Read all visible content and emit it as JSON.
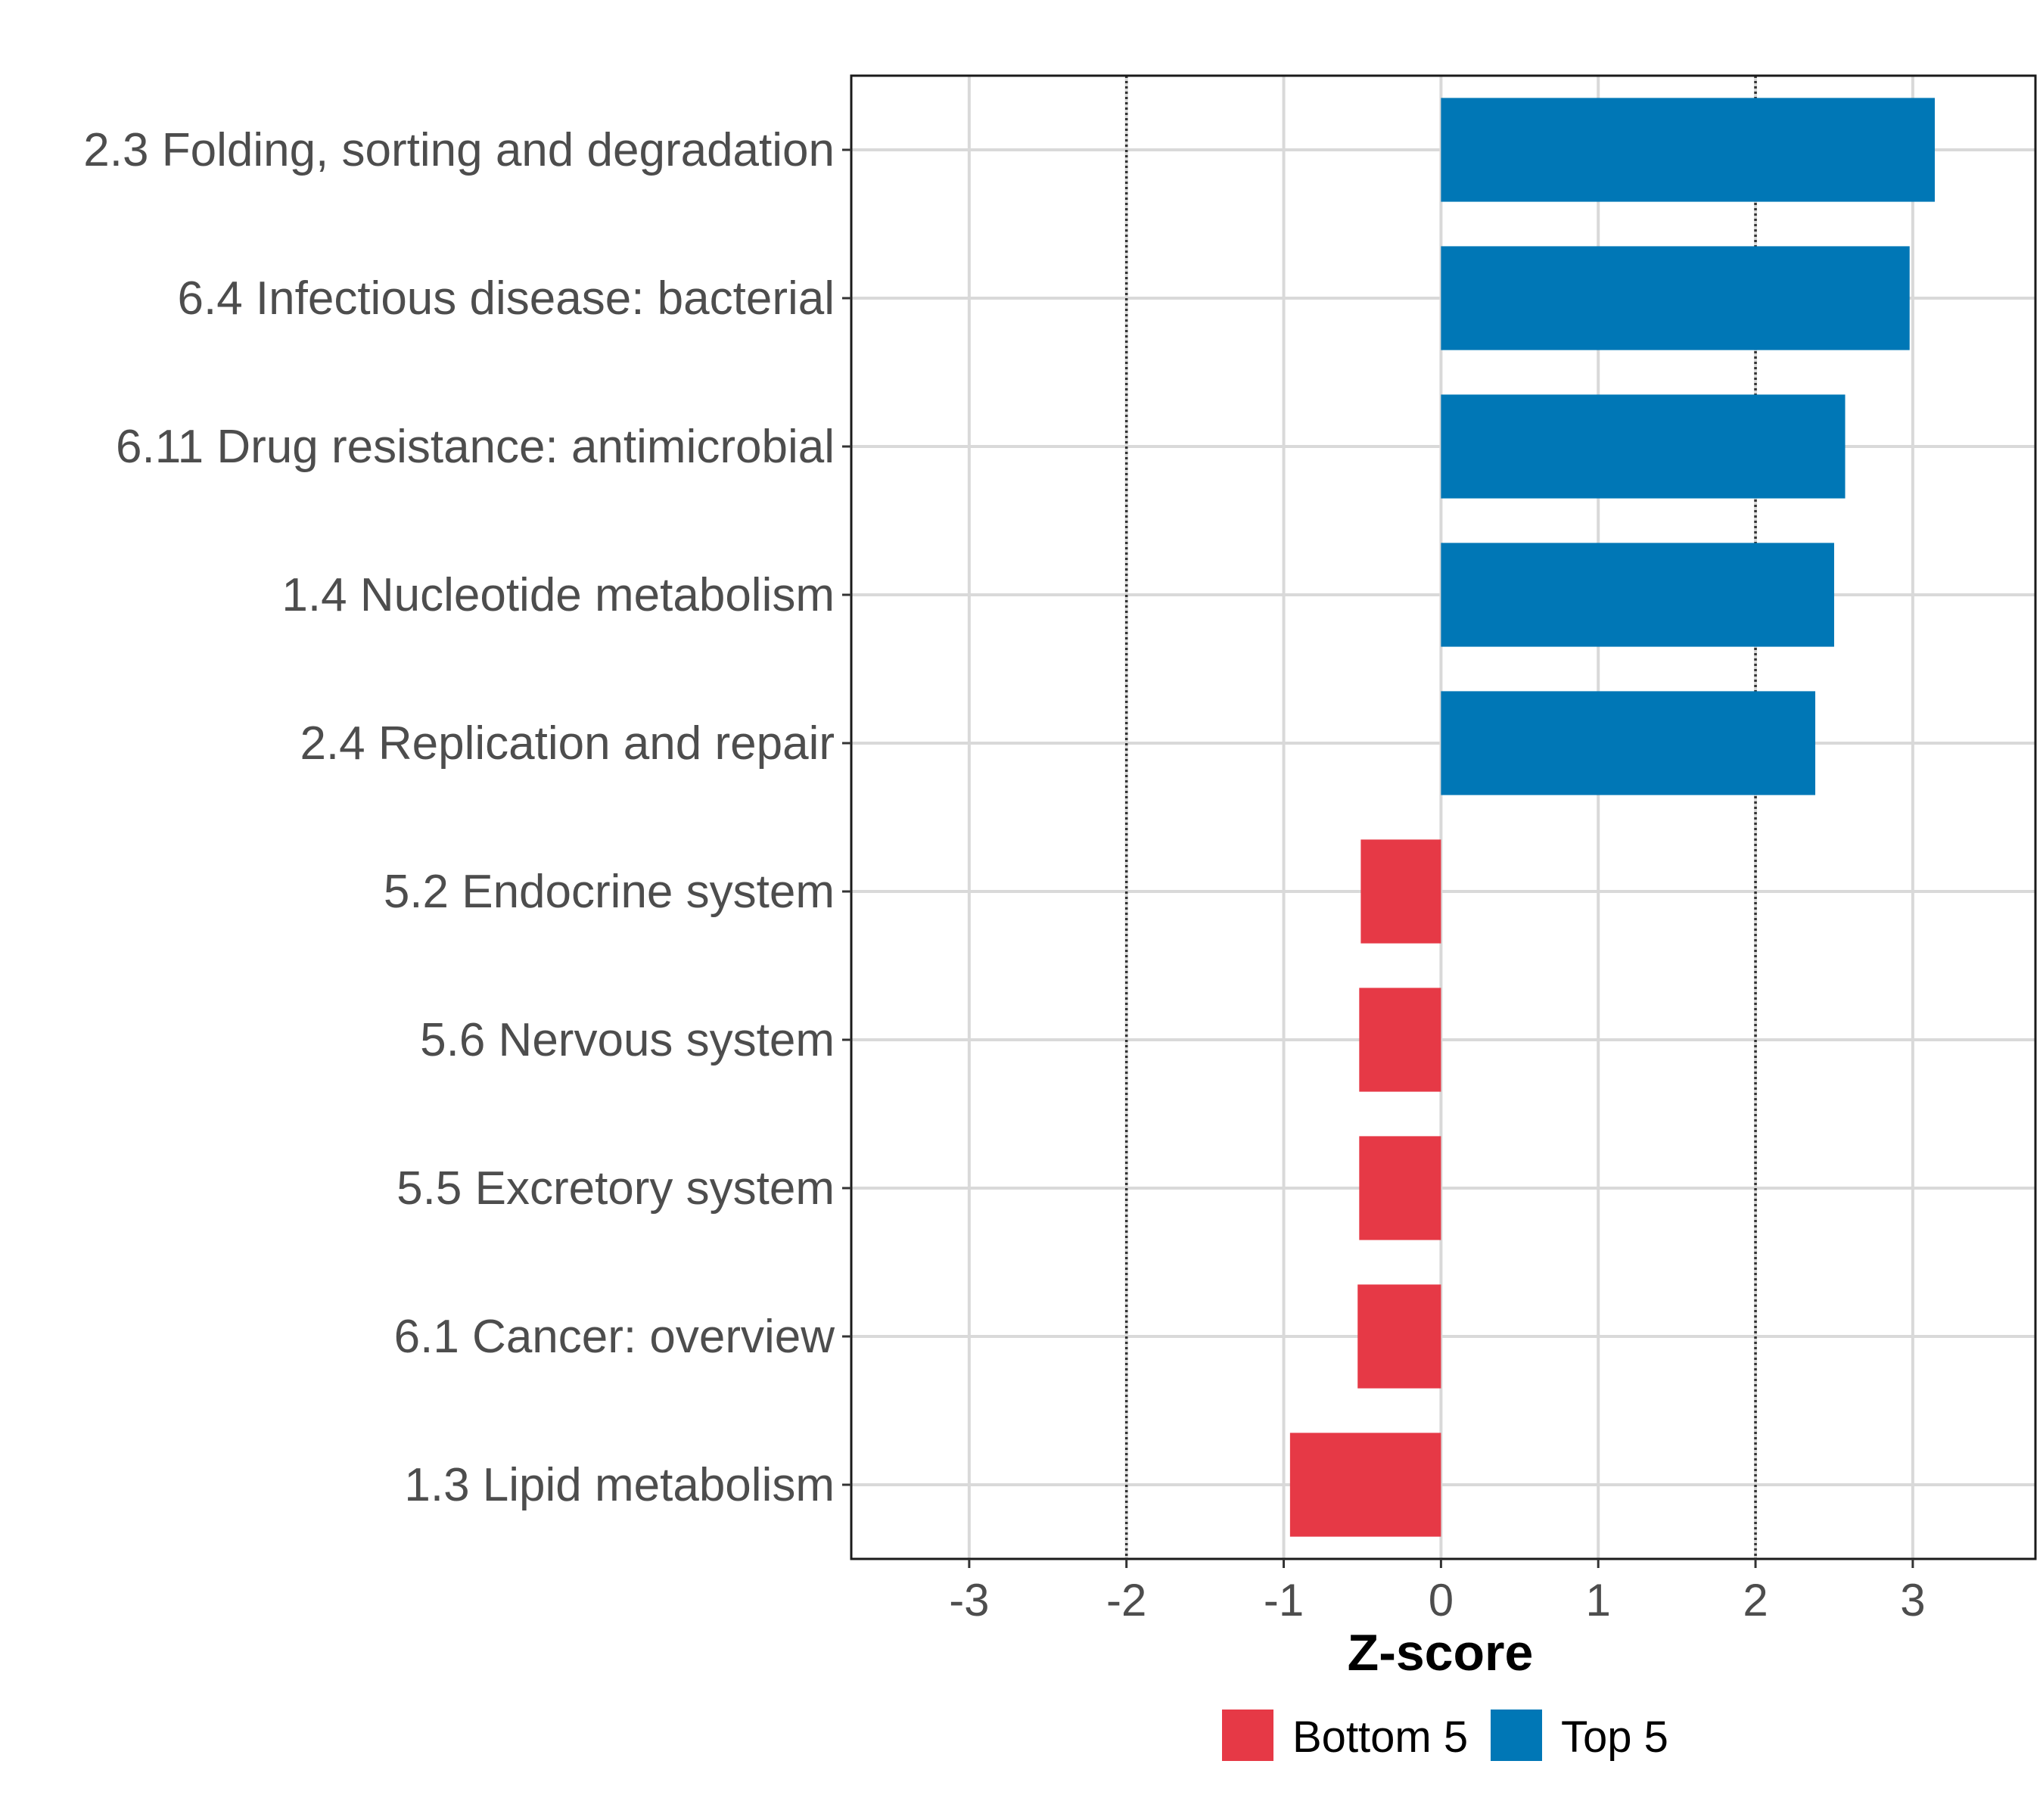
{
  "chart_data": {
    "type": "bar",
    "orientation": "horizontal",
    "xlabel": "Z-score",
    "ylabel": "",
    "xlim": [
      -3.75,
      3.78
    ],
    "x_ticks": [
      -3,
      -2,
      -1,
      0,
      1,
      2,
      3
    ],
    "x_tick_labels": [
      "-3",
      "-2",
      "-1",
      "0",
      "1",
      "2",
      "3"
    ],
    "reference_lines": [
      -2,
      2
    ],
    "grid": true,
    "legend_position": "bottom",
    "categories": [
      "2.3 Folding, sorting and degradation",
      "6.4 Infectious disease: bacterial",
      "6.11 Drug resistance: antimicrobial",
      "1.4 Nucleotide metabolism",
      "2.4 Replication and repair",
      "5.2 Endocrine system",
      "5.6 Nervous system",
      "5.5 Excretory system",
      "6.1 Cancer: overview",
      "1.3 Lipid metabolism"
    ],
    "values": [
      3.14,
      2.98,
      2.57,
      2.5,
      2.38,
      -0.51,
      -0.52,
      -0.52,
      -0.53,
      -0.96
    ],
    "groups": [
      "Top 5",
      "Top 5",
      "Top 5",
      "Top 5",
      "Top 5",
      "Bottom 5",
      "Bottom 5",
      "Bottom 5",
      "Bottom 5",
      "Bottom 5"
    ],
    "legend": [
      {
        "name": "Bottom 5",
        "color": "#E63946"
      },
      {
        "name": "Top 5",
        "color": "#0077B6"
      }
    ]
  }
}
